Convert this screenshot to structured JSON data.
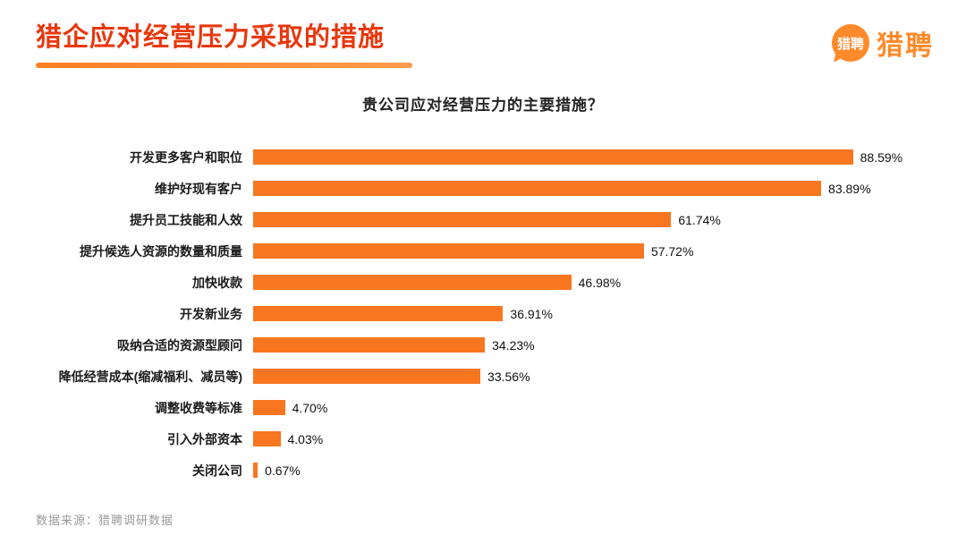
{
  "page": {
    "title": "猎企应对经营压力采取的措施",
    "source": "数据来源：猎聘调研数据"
  },
  "logo": {
    "bubble_text": "猎聘",
    "wordmark": "猎聘"
  },
  "colors": {
    "title-color": "#e8380d",
    "underline-color": "#fd7e23",
    "underline-color2": "#ff9a4c",
    "logo-color": "#ff8a2b",
    "source-color": "#999999"
  },
  "chart_data": {
    "type": "bar",
    "orientation": "horizontal",
    "title": "贵公司应对经营压力的主要措施？",
    "categories": [
      "开发更多客户和职位",
      "维护好现有客户",
      "提升员工技能和人效",
      "提升候选人资源的数量和质量",
      "加快收款",
      "开发新业务",
      "吸纳合适的资源型顾问",
      "降低经营成本(缩减福利、减员等)",
      "调整收费等标准",
      "引入外部资本",
      "关闭公司"
    ],
    "values": [
      88.59,
      83.89,
      61.74,
      57.72,
      46.98,
      36.91,
      34.23,
      33.56,
      4.7,
      4.03,
      0.67
    ],
    "value_labels": [
      "88.59%",
      "83.89%",
      "61.74%",
      "57.72%",
      "46.98%",
      "36.91%",
      "34.23%",
      "33.56%",
      "4.70%",
      "4.03%",
      "0.67%"
    ],
    "bar_color": "#f8761f",
    "xlabel": "",
    "ylabel": "",
    "xlim": [
      0,
      100
    ],
    "grid": false,
    "legend": "none"
  }
}
